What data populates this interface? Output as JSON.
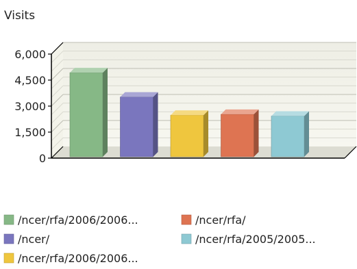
{
  "chart_data": {
    "type": "bar",
    "title": "",
    "ylabel": "Visits",
    "xlabel": "",
    "ylim": [
      0,
      6000
    ],
    "yticks": [
      0,
      1500,
      3000,
      4500,
      6000
    ],
    "ytick_labels": [
      "0",
      "1,500",
      "3,000",
      "4,500",
      "6,000"
    ],
    "grid": true,
    "legend_position": "bottom",
    "categories": [
      "/ncer/rfa/2006/2006...",
      "/ncer/",
      "/ncer/rfa/2006/2006...",
      "/ncer/rfa/",
      "/ncer/rfa/2005/2005..."
    ],
    "values": [
      4850,
      3450,
      2400,
      2450,
      2350
    ],
    "colors": [
      "#86b886",
      "#7a76be",
      "#efc63e",
      "#de7452",
      "#8ec9d3"
    ],
    "legend_order": [
      0,
      3,
      1,
      4,
      2
    ]
  }
}
